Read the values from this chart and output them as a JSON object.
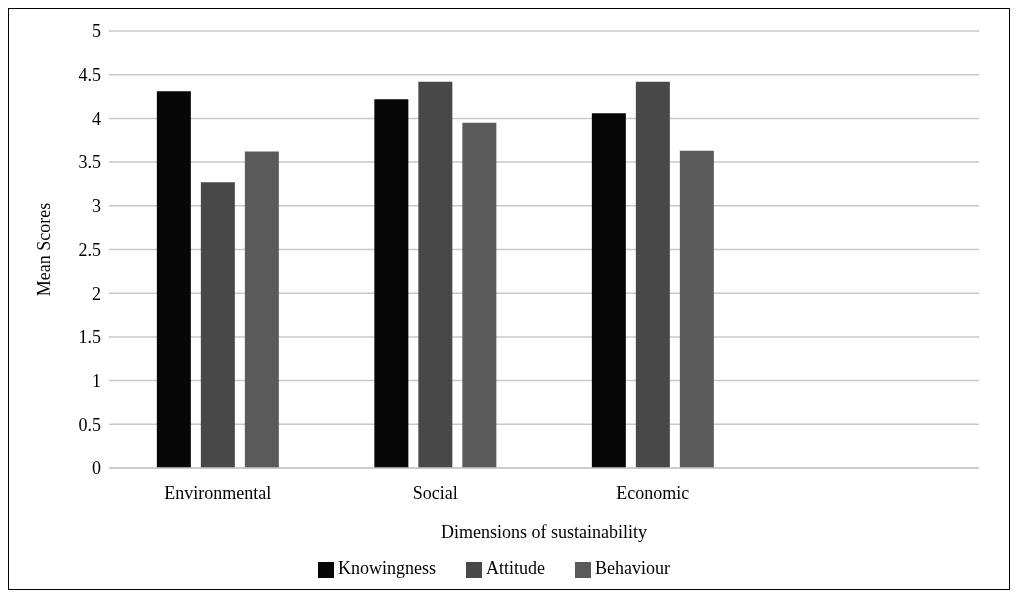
{
  "chart_data": {
    "type": "bar",
    "xlabel": "Dimensions of sustainability",
    "ylabel": "Mean Scores",
    "categories": [
      "Environmental",
      "Social",
      "Economic",
      null
    ],
    "series": [
      {
        "name": "Knowingness",
        "color": "#070707",
        "values": [
          4.31,
          4.22,
          4.06,
          null
        ]
      },
      {
        "name": "Attitude",
        "color": "#484848",
        "values": [
          3.27,
          4.42,
          4.42,
          null
        ]
      },
      {
        "name": "Behaviour",
        "color": "#5a5a5a",
        "values": [
          3.62,
          3.95,
          3.63,
          null
        ]
      }
    ],
    "ylim": [
      0,
      5
    ],
    "yticks": [
      0,
      0.5,
      1,
      1.5,
      2,
      2.5,
      3,
      3.5,
      4,
      4.5,
      5
    ],
    "grid": "y",
    "legend": "bottom"
  }
}
